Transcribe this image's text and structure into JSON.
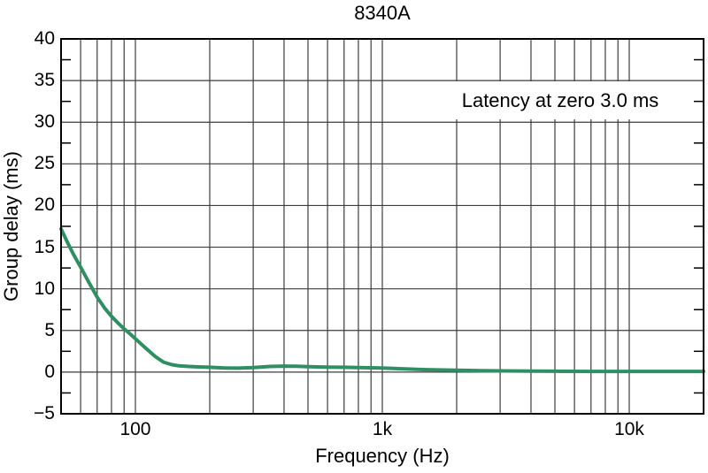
{
  "chart_data": {
    "type": "line",
    "title": "8340A",
    "xlabel": "Frequency (Hz)",
    "ylabel": "Group delay (ms)",
    "annotation": "Latency at zero 3.0 ms",
    "x_scale": "log",
    "x_range": [
      50,
      20000
    ],
    "y_range": [
      -5,
      40
    ],
    "y_major_step": 5,
    "y_minor_step": 2.5,
    "grid": true,
    "x_major_ticks": [
      100,
      1000,
      10000
    ],
    "x_tick_labels": [
      "100",
      "1k",
      "10k"
    ],
    "y_tick_values": [
      40,
      35,
      30,
      25,
      20,
      15,
      10,
      5,
      0,
      -5
    ],
    "y_tick_labels": [
      "40",
      "35",
      "30",
      "25",
      "20",
      "15",
      "10",
      "5",
      "0",
      "−5"
    ],
    "line_color": "#2e8f63",
    "grid_color": "#3c3c3c",
    "frame_color": "#000000",
    "series": [
      {
        "name": "Group delay",
        "points": [
          [
            50,
            17.2
          ],
          [
            53,
            15.6
          ],
          [
            56,
            14.2
          ],
          [
            60,
            12.6
          ],
          [
            65,
            10.7
          ],
          [
            70,
            9.0
          ],
          [
            75,
            7.7
          ],
          [
            80,
            6.7
          ],
          [
            85,
            5.9
          ],
          [
            90,
            5.2
          ],
          [
            95,
            4.6
          ],
          [
            100,
            4.0
          ],
          [
            110,
            2.9
          ],
          [
            120,
            1.9
          ],
          [
            130,
            1.2
          ],
          [
            140,
            0.9
          ],
          [
            150,
            0.75
          ],
          [
            165,
            0.68
          ],
          [
            180,
            0.63
          ],
          [
            200,
            0.58
          ],
          [
            230,
            0.5
          ],
          [
            260,
            0.48
          ],
          [
            300,
            0.55
          ],
          [
            350,
            0.68
          ],
          [
            400,
            0.72
          ],
          [
            450,
            0.7
          ],
          [
            500,
            0.65
          ],
          [
            600,
            0.6
          ],
          [
            700,
            0.58
          ],
          [
            800,
            0.55
          ],
          [
            900,
            0.52
          ],
          [
            1000,
            0.5
          ],
          [
            1200,
            0.4
          ],
          [
            1500,
            0.3
          ],
          [
            2000,
            0.22
          ],
          [
            2500,
            0.18
          ],
          [
            3000,
            0.15
          ],
          [
            4000,
            0.12
          ],
          [
            5000,
            0.1
          ],
          [
            7000,
            0.08
          ],
          [
            10000,
            0.08
          ],
          [
            14000,
            0.08
          ],
          [
            20000,
            0.08
          ]
        ]
      }
    ]
  }
}
